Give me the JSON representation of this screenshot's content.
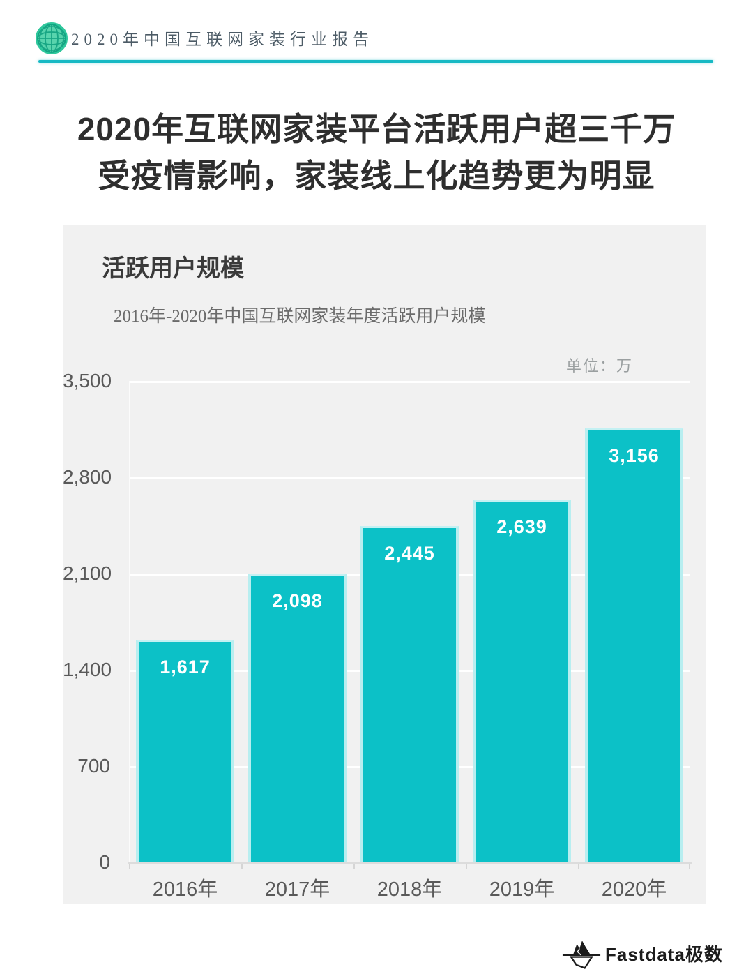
{
  "header": {
    "logo_icon": "globe-icon",
    "title": "2020年中国互联网家装行业报告"
  },
  "main_title": {
    "line1": "2020年互联网家装平台活跃用户超三千万",
    "line2": "受疫情影响，家装线上化趋势更为明显"
  },
  "chart_card": {
    "heading": "活跃用户规模",
    "subtitle": "2016年-2020年中国互联网家装年度活跃用户规模",
    "unit_label": "单位：万"
  },
  "chart_data": {
    "type": "bar",
    "title": "2016年-2020年中国互联网家装年度活跃用户规模",
    "unit": "万",
    "categories": [
      "2016年",
      "2017年",
      "2018年",
      "2019年",
      "2020年"
    ],
    "values": [
      1617,
      2098,
      2445,
      2639,
      3156
    ],
    "value_labels": [
      "1,617",
      "2,098",
      "2,445",
      "2,639",
      "3,156"
    ],
    "ylim": [
      0,
      3500
    ],
    "ytick_interval": 700,
    "yticks_top_to_bottom": [
      "3,500",
      "2,800",
      "2,100",
      "1,400",
      "700",
      "0"
    ],
    "grid": true,
    "legend": "none",
    "bar_color": "#0cc1c7",
    "bar_edge_color": "#b8eef0",
    "value_label_color": "#ffffff"
  },
  "footer": {
    "logo_icon": "iceberg-icon",
    "brand": "Fastdata极数"
  },
  "colors": {
    "accent_teal": "#17b9c4",
    "globe_green": "#45cfa6",
    "card_background": "#f1f1f1",
    "gridline": "#ffffff",
    "axis_text": "#595959",
    "title_text": "#2e2e2e"
  }
}
